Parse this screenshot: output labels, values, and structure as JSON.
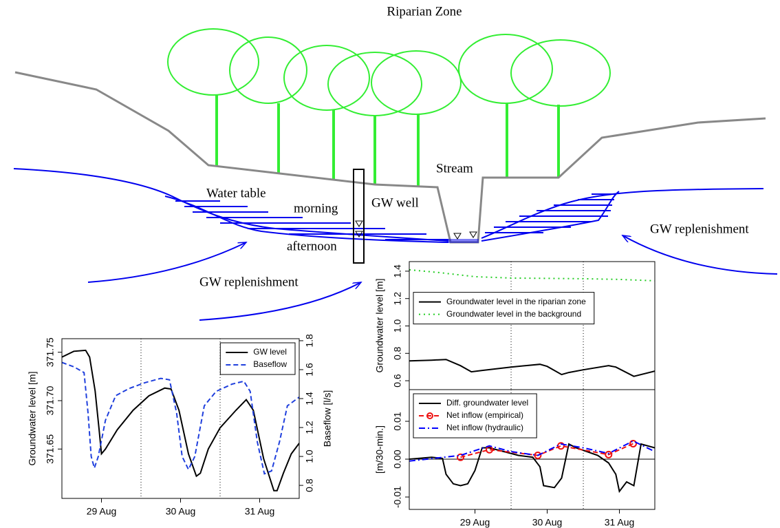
{
  "diagram": {
    "title": "Riparian Zone",
    "labels": [
      "Water table",
      "morning",
      "GW well",
      "afternoon",
      "Stream",
      "GW replenishment",
      "GW replenishment"
    ]
  },
  "chart_data": [
    {
      "type": "line",
      "ylabel": "Groundwater level [m]",
      "y2label": "Baseflow [l/s]",
      "xlim": [
        0,
        3
      ],
      "xticks": [
        {
          "value": 0.5,
          "label": "29 Aug"
        },
        {
          "value": 1.5,
          "label": "30 Aug"
        },
        {
          "value": 2.5,
          "label": "31 Aug"
        }
      ],
      "vlines": [
        1,
        2
      ],
      "ylim": [
        371.599,
        371.764
      ],
      "yticks": [
        371.65,
        {
          "value": 371.7,
          "label": "371.70"
        },
        371.75
      ],
      "y2lim": [
        0.71,
        1.814
      ],
      "y2ticks": [
        0.8,
        {
          "value": 1,
          "label": "1.0"
        },
        1.2,
        1.4,
        1.6,
        1.8
      ],
      "legend": "top-right",
      "series": [
        {
          "name": "GW level",
          "color": "#000000",
          "dash": "solid",
          "x": [
            0,
            0.15,
            0.3,
            0.35,
            0.42,
            0.47,
            0.5,
            0.55,
            0.7,
            0.9,
            1.1,
            1.3,
            1.38,
            1.48,
            1.6,
            1.7,
            1.75,
            1.85,
            2.0,
            2.2,
            2.33,
            2.42,
            2.55,
            2.68,
            2.72,
            2.8,
            2.9,
            3.0
          ],
          "values": [
            371.745,
            371.751,
            371.752,
            371.745,
            371.71,
            371.67,
            371.645,
            371.65,
            371.67,
            371.69,
            371.705,
            371.713,
            371.712,
            371.69,
            371.645,
            371.622,
            371.625,
            371.65,
            371.672,
            371.69,
            371.701,
            371.69,
            371.64,
            371.607,
            371.607,
            371.625,
            371.645,
            371.656
          ]
        },
        {
          "name": "Baseflow",
          "color": "#1f3fdd",
          "dash": "dashed",
          "axis": "y2",
          "x": [
            0,
            0.15,
            0.28,
            0.33,
            0.37,
            0.41,
            0.46,
            0.55,
            0.68,
            0.85,
            1.05,
            1.25,
            1.36,
            1.45,
            1.52,
            1.6,
            1.68,
            1.8,
            1.95,
            2.15,
            2.3,
            2.38,
            2.47,
            2.56,
            2.65,
            2.75,
            2.85,
            3.0
          ],
          "values": [
            1.65,
            1.62,
            1.58,
            1.3,
            1.0,
            0.92,
            1.0,
            1.25,
            1.42,
            1.47,
            1.51,
            1.54,
            1.53,
            1.3,
            1.0,
            0.91,
            1.0,
            1.35,
            1.45,
            1.5,
            1.52,
            1.45,
            1.1,
            0.88,
            0.9,
            1.1,
            1.35,
            1.41
          ]
        }
      ]
    },
    {
      "type": "line",
      "ylabel": "Groundwater level [m]",
      "xlim": [
        -0.41,
        2.99
      ],
      "vlines": [
        1,
        2
      ],
      "ylim": [
        0.535,
        1.47
      ],
      "yticks": [
        0.6,
        0.8,
        {
          "value": 1,
          "label": "1.0"
        },
        1.2,
        1.4
      ],
      "legend": "left",
      "series": [
        {
          "name": "Groundwater level in the riparian zone",
          "color": "#000000",
          "dash": "solid",
          "x": [
            -0.41,
            -0.1,
            0.1,
            0.3,
            0.45,
            0.6,
            1.0,
            1.4,
            1.5,
            1.7,
            1.8,
            2.0,
            2.35,
            2.45,
            2.7,
            2.99
          ],
          "values": [
            0.745,
            0.75,
            0.755,
            0.71,
            0.665,
            0.675,
            0.7,
            0.72,
            0.705,
            0.645,
            0.66,
            0.68,
            0.71,
            0.7,
            0.632,
            0.67
          ]
        },
        {
          "name": "Groundwater level in the background",
          "color": "#22cc22",
          "dash": "dotted",
          "x": [
            -0.41,
            0,
            0.5,
            1.0,
            2.0,
            2.5,
            2.99
          ],
          "values": [
            1.41,
            1.39,
            1.36,
            1.35,
            1.345,
            1.34,
            1.33
          ]
        }
      ]
    },
    {
      "type": "line",
      "ylabel": "[m/30-min.]",
      "xlim": [
        -0.41,
        2.99
      ],
      "xticks": [
        {
          "value": 0.5,
          "label": "29 Aug"
        },
        {
          "value": 1.5,
          "label": "30 Aug"
        },
        {
          "value": 2.5,
          "label": "31 Aug"
        }
      ],
      "vlines": [
        1,
        2
      ],
      "hline": 0,
      "ylim": [
        -0.01327,
        0.01836
      ],
      "yticks": [
        -0.01,
        {
          "value": 0,
          "label": "0.00"
        },
        0.01
      ],
      "legend": "top-left",
      "series": [
        {
          "name": "Diff. groundwater level",
          "color": "#000000",
          "dash": "solid",
          "x": [
            -0.41,
            -0.1,
            0.05,
            0.1,
            0.2,
            0.3,
            0.4,
            0.5,
            0.6,
            0.7,
            0.9,
            1.1,
            1.3,
            1.4,
            1.45,
            1.6,
            1.7,
            1.8,
            1.9,
            2.2,
            2.35,
            2.45,
            2.5,
            2.6,
            2.7,
            2.8,
            2.99
          ],
          "values": [
            0,
            0.0005,
            0.0002,
            -0.004,
            -0.0065,
            -0.007,
            -0.0065,
            -0.003,
            0.003,
            0.003,
            0.002,
            0.001,
            0.0005,
            -0.002,
            -0.007,
            -0.0075,
            -0.005,
            0.004,
            0.003,
            0.001,
            -0.001,
            -0.004,
            -0.0085,
            -0.006,
            -0.007,
            0.004,
            0.003
          ]
        },
        {
          "name": "Net inflow (empirical)",
          "color": "#ee1111",
          "dash": "dashed",
          "markers": true,
          "x": [
            0.3,
            0.7,
            1.37,
            1.69,
            2.35,
            2.69
          ],
          "values": [
            0.0005,
            0.0025,
            0.001,
            0.0035,
            0.0012,
            0.0041
          ]
        },
        {
          "name": "Net inflow (hydraulic)",
          "color": "#0000ff",
          "dash": "dashdot",
          "x": [
            -0.41,
            0.3,
            0.7,
            1.0,
            1.37,
            1.69,
            2.0,
            2.35,
            2.69,
            2.99
          ],
          "values": [
            -0.0005,
            0.001,
            0.0035,
            0.002,
            0.001,
            0.004,
            0.003,
            0.0015,
            0.0048,
            0.002
          ]
        }
      ]
    }
  ]
}
